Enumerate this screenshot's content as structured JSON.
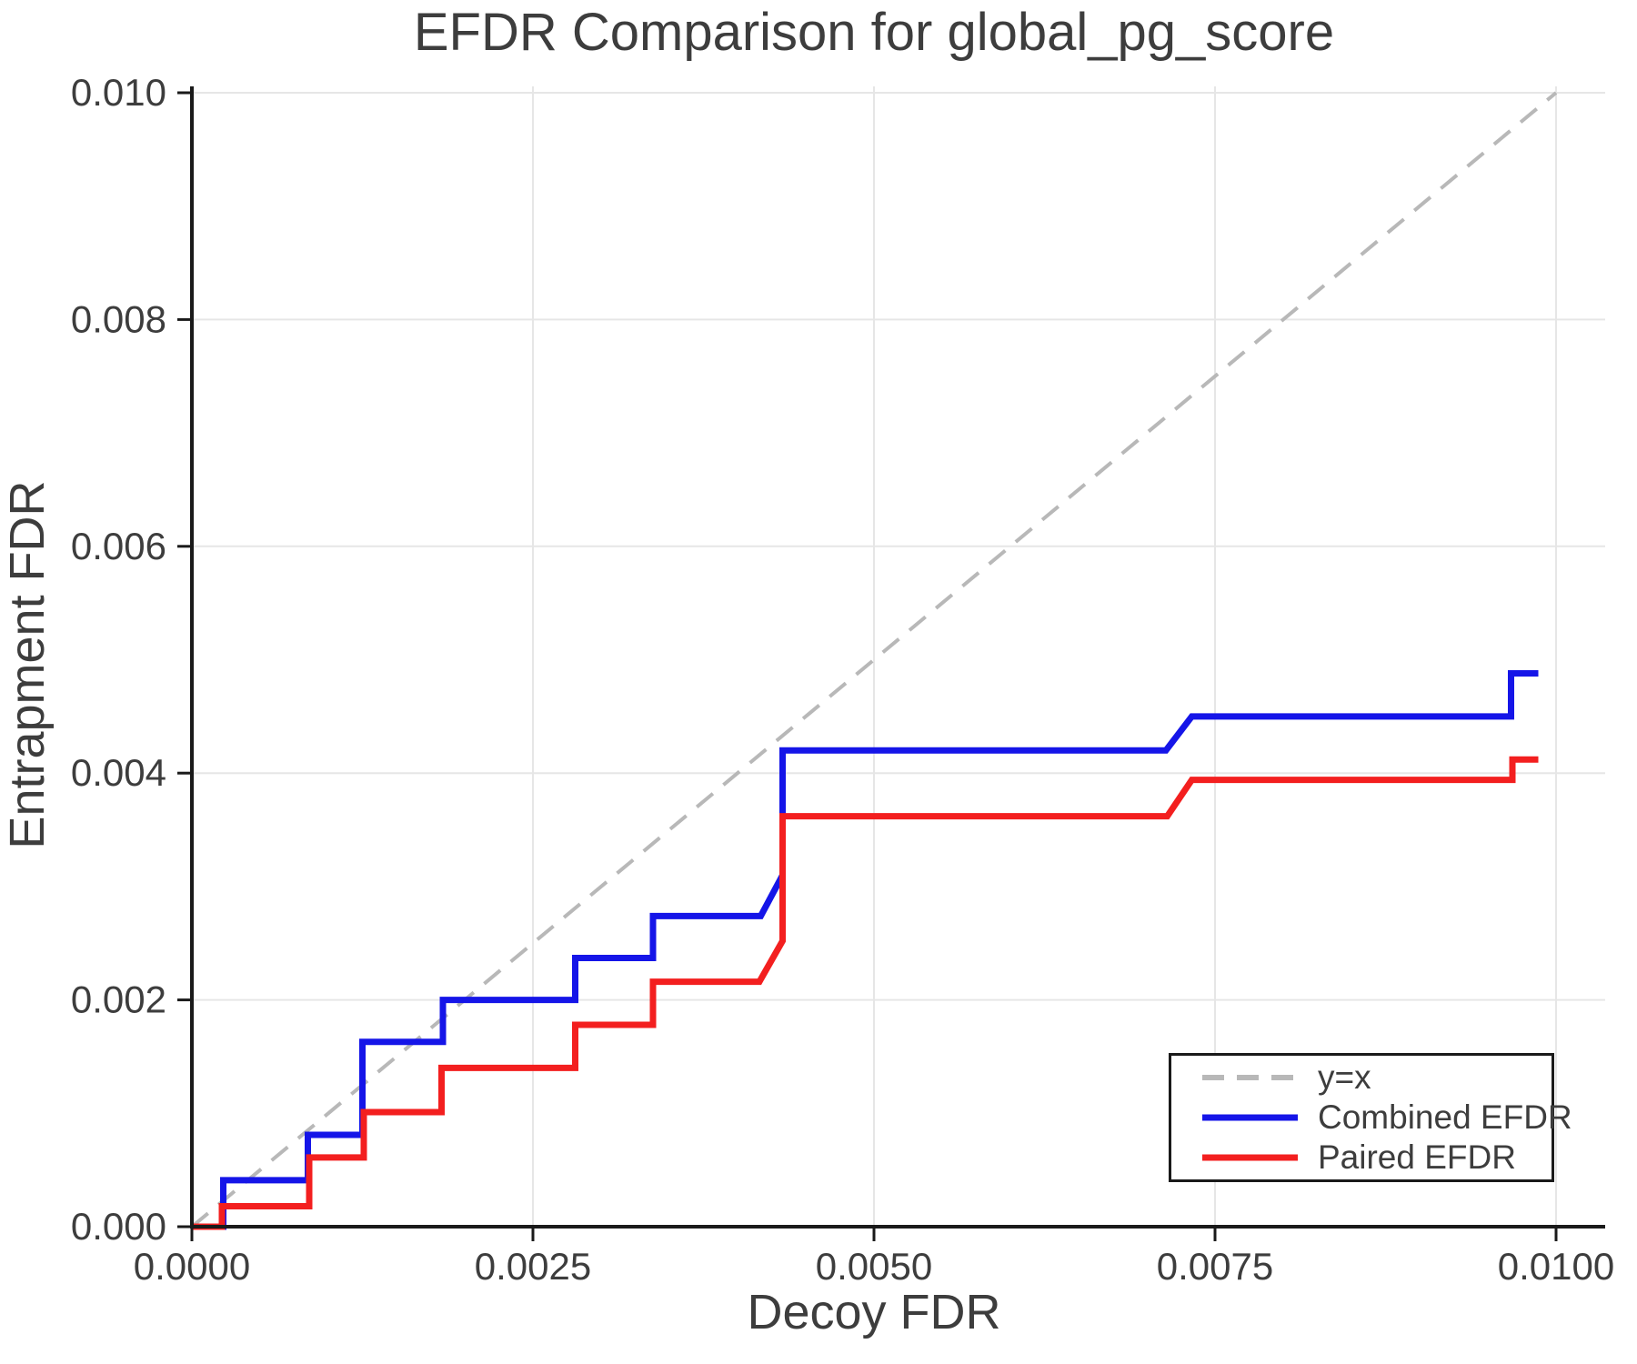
{
  "title": "EFDR Comparison for global_pg_score",
  "axes": {
    "xlabel": "Decoy FDR",
    "ylabel": "Entrapment FDR",
    "x_tick_labels": [
      "0.0000",
      "0.0025",
      "0.0050",
      "0.0075",
      "0.0100"
    ],
    "y_tick_labels": [
      "0.000",
      "0.002",
      "0.004",
      "0.006",
      "0.008",
      "0.010"
    ]
  },
  "colors": {
    "identity": "#b8b8b8",
    "combined": "#1515e8",
    "paired": "#f31f1f",
    "grid": "#e6e6e6",
    "spine": "#1a1a1a",
    "text": "#3d3d3d"
  },
  "chart_data": {
    "type": "line",
    "title": "EFDR Comparison for global_pg_score",
    "xlabel": "Decoy FDR",
    "ylabel": "Entrapment FDR",
    "xlim": [
      0,
      0.01036
    ],
    "ylim": [
      0,
      0.01005
    ],
    "x_ticks": [
      0,
      0.0025,
      0.005,
      0.0075,
      0.01
    ],
    "y_ticks": [
      0,
      0.002,
      0.004,
      0.006,
      0.008,
      0.01
    ],
    "grid": true,
    "legend_position": "lower right",
    "series": [
      {
        "name": "y=x",
        "style": "dashed",
        "color": "#b8b8b8",
        "points": [
          [
            0,
            0
          ],
          [
            0.01,
            0.01
          ]
        ]
      },
      {
        "name": "Combined EFDR",
        "style": "solid",
        "color": "#1515e8",
        "points": [
          [
            0,
            0
          ],
          [
            0.00023,
            0
          ],
          [
            0.00023,
            0.00041
          ],
          [
            0.00085,
            0.00041
          ],
          [
            0.00085,
            0.00081
          ],
          [
            0.00125,
            0.00081
          ],
          [
            0.00125,
            0.00163
          ],
          [
            0.00184,
            0.00163
          ],
          [
            0.00184,
            0.002
          ],
          [
            0.00281,
            0.002
          ],
          [
            0.00281,
            0.00237
          ],
          [
            0.00338,
            0.00237
          ],
          [
            0.00338,
            0.00274
          ],
          [
            0.00417,
            0.00274
          ],
          [
            0.00433,
            0.0031
          ],
          [
            0.00433,
            0.0042
          ],
          [
            0.00714,
            0.0042
          ],
          [
            0.00733,
            0.0045
          ],
          [
            0.00967,
            0.0045
          ],
          [
            0.00967,
            0.00488
          ],
          [
            0.00987,
            0.00488
          ]
        ]
      },
      {
        "name": "Paired EFDR",
        "style": "solid",
        "color": "#f31f1f",
        "points": [
          [
            0,
            0
          ],
          [
            0.00022,
            0
          ],
          [
            0.00022,
            0.00018
          ],
          [
            0.00086,
            0.00018
          ],
          [
            0.00086,
            0.00061
          ],
          [
            0.00126,
            0.00061
          ],
          [
            0.00126,
            0.00101
          ],
          [
            0.00183,
            0.00101
          ],
          [
            0.00183,
            0.0014
          ],
          [
            0.00281,
            0.0014
          ],
          [
            0.00281,
            0.00178
          ],
          [
            0.00338,
            0.00178
          ],
          [
            0.00338,
            0.00216
          ],
          [
            0.00416,
            0.00216
          ],
          [
            0.00433,
            0.00252
          ],
          [
            0.00433,
            0.00362
          ],
          [
            0.00715,
            0.00362
          ],
          [
            0.00733,
            0.00394
          ],
          [
            0.00968,
            0.00394
          ],
          [
            0.00968,
            0.00412
          ],
          [
            0.00987,
            0.00412
          ]
        ]
      }
    ]
  }
}
